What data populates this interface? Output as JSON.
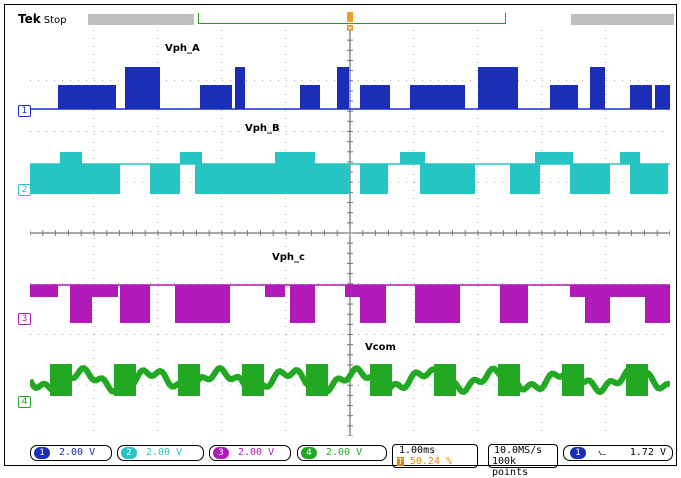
{
  "header": {
    "brand": "Tek",
    "status": "Stop"
  },
  "trigger": {
    "level_marker": "T"
  },
  "signals": [
    {
      "label": "Vph_A",
      "marker": "1",
      "color": "#1a2eb8"
    },
    {
      "label": "Vph_B",
      "marker": "2",
      "color": "#27c4c4"
    },
    {
      "label": "Vph_c",
      "marker": "3",
      "color": "#b01ab8"
    },
    {
      "label": "Vcom",
      "marker": "4",
      "color": "#22a822"
    }
  ],
  "channels": [
    {
      "num": "1",
      "scale": "2.00 V",
      "color": "#1a2eb8"
    },
    {
      "num": "2",
      "scale": "2.00 V",
      "color": "#27c4c4"
    },
    {
      "num": "3",
      "scale": "2.00 V",
      "color": "#b01ab8"
    },
    {
      "num": "4",
      "scale": "2.00 V",
      "color": "#22a822"
    }
  ],
  "timebase": {
    "scale": "1.00ms",
    "trigger_position": "50.24 %"
  },
  "acquisition": {
    "rate": "10.0MS/s",
    "points": "100k points"
  },
  "trigger_info": {
    "source": "1",
    "slope": "⦦",
    "level": "1.72 V"
  }
}
